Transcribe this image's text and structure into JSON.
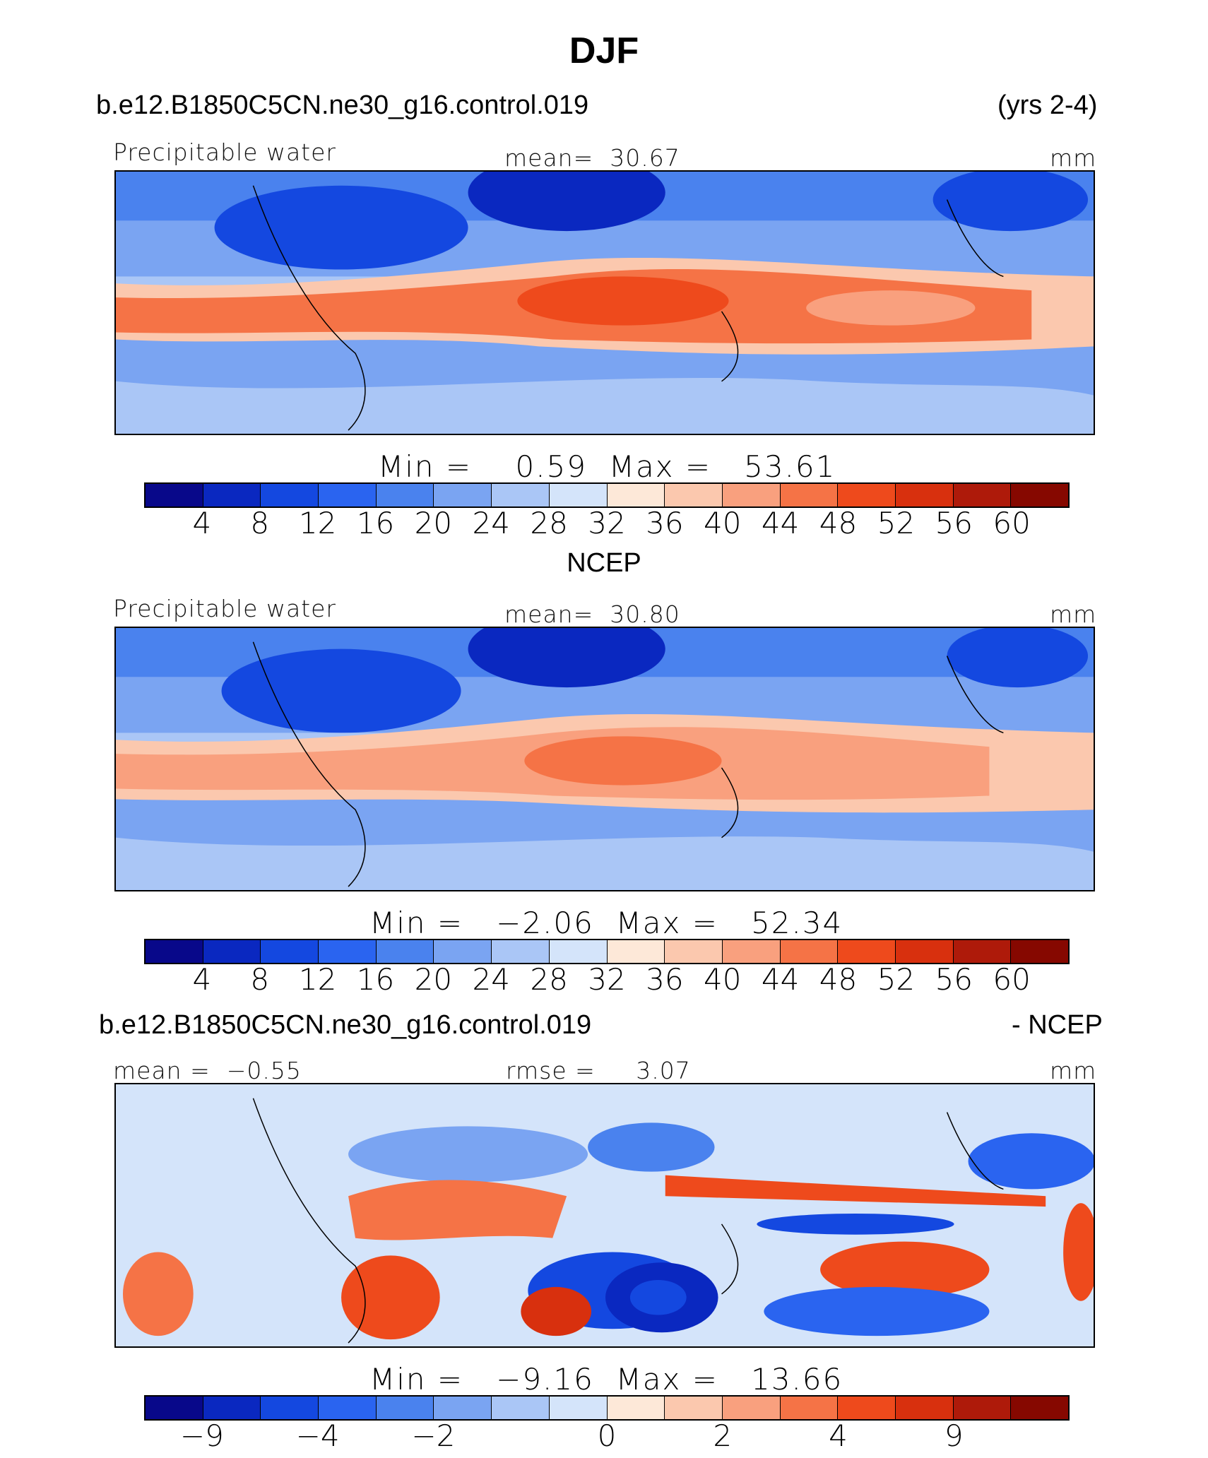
{
  "page": {
    "season": "DJF",
    "case": "b.e12.B1850C5CN.ne30_g16.control.019",
    "years": "(yrs 2-4)",
    "obs_name": "NCEP",
    "diff_suffix": "- NCEP"
  },
  "panels": [
    {
      "variable": "Precipitable water",
      "mean_label": "mean=",
      "mean_value": "30.67",
      "units": "mm",
      "min_label": "Min  =",
      "min_value": "0.59",
      "max_label": "Max  =",
      "max_value": "53.61"
    },
    {
      "variable": "Precipitable water",
      "mean_label": "mean=",
      "mean_value": "30.80",
      "units": "mm",
      "min_label": "Min  =",
      "min_value": "−2.06",
      "max_label": "Max  =",
      "max_value": "52.34"
    },
    {
      "mean_label": "mean  =",
      "mean_value": "−0.55",
      "rmse_label": "rmse  =",
      "rmse_value": "3.07",
      "units": "mm",
      "min_label": "Min  =",
      "min_value": "−9.16",
      "max_label": "Max  =",
      "max_value": "13.66"
    }
  ],
  "colorbar": {
    "colors": [
      "#08088a",
      "#0a28c0",
      "#1448e0",
      "#2a64f0",
      "#4a82ee",
      "#7aa4f2",
      "#aac6f6",
      "#d4e4fa",
      "#fde8d8",
      "#fbc8ae",
      "#f9a07e",
      "#f57346",
      "#ee4a1c",
      "#d8300e",
      "#ae1a0a",
      "#860800"
    ],
    "ticks_field": [
      "4",
      "8",
      "12",
      "16",
      "20",
      "24",
      "28",
      "32",
      "36",
      "40",
      "44",
      "48",
      "52",
      "56",
      "60"
    ],
    "ticks_diff": [
      "−9",
      "−4",
      "−2",
      "0",
      "2",
      "4",
      "9"
    ],
    "ticks_diff_boundaries": [
      1,
      3,
      5,
      8,
      10,
      12,
      14
    ]
  }
}
